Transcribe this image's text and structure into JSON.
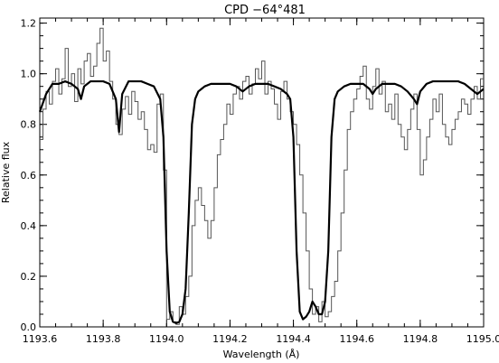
{
  "chart_data": {
    "type": "line",
    "title": "CPD  −64°481",
    "xlabel": "Wavelength (Å)",
    "ylabel": "Relative flux",
    "xlim": [
      1193.6,
      1195.0
    ],
    "ylim": [
      0.0,
      1.22
    ],
    "x_ticks": [
      1193.6,
      1193.8,
      1194.0,
      1194.2,
      1194.4,
      1194.6,
      1194.8,
      1195.0
    ],
    "x_tick_labels": [
      "1193.6",
      "1193.8",
      "1194.0",
      "1194.2",
      "1194.4",
      "1194.6",
      "1194.8",
      "1195.0"
    ],
    "y_ticks": [
      0.0,
      0.2,
      0.4,
      0.6,
      0.8,
      1.0,
      1.2
    ],
    "y_tick_labels": [
      "0.0",
      "0.2",
      "0.4",
      "0.6",
      "0.8",
      "1.0",
      "1.2"
    ],
    "grid": false,
    "series": [
      {
        "style": "histogram",
        "color": "#555555",
        "x": [
          1193.6,
          1193.61,
          1193.62,
          1193.63,
          1193.64,
          1193.65,
          1193.66,
          1193.67,
          1193.68,
          1193.69,
          1193.7,
          1193.71,
          1193.72,
          1193.73,
          1193.74,
          1193.75,
          1193.76,
          1193.77,
          1193.78,
          1193.79,
          1193.8,
          1193.81,
          1193.82,
          1193.83,
          1193.84,
          1193.85,
          1193.86,
          1193.87,
          1193.88,
          1193.89,
          1193.9,
          1193.91,
          1193.92,
          1193.93,
          1193.94,
          1193.95,
          1193.96,
          1193.97,
          1193.98,
          1193.99,
          1194.0,
          1194.01,
          1194.02,
          1194.03,
          1194.04,
          1194.05,
          1194.06,
          1194.07,
          1194.08,
          1194.09,
          1194.1,
          1194.11,
          1194.12,
          1194.13,
          1194.14,
          1194.15,
          1194.16,
          1194.17,
          1194.18,
          1194.19,
          1194.2,
          1194.21,
          1194.22,
          1194.23,
          1194.24,
          1194.25,
          1194.26,
          1194.27,
          1194.28,
          1194.29,
          1194.3,
          1194.31,
          1194.32,
          1194.33,
          1194.34,
          1194.35,
          1194.36,
          1194.37,
          1194.38,
          1194.39,
          1194.4,
          1194.41,
          1194.42,
          1194.43,
          1194.44,
          1194.45,
          1194.46,
          1194.47,
          1194.48,
          1194.49,
          1194.5,
          1194.51,
          1194.52,
          1194.53,
          1194.54,
          1194.55,
          1194.56,
          1194.57,
          1194.58,
          1194.59,
          1194.6,
          1194.61,
          1194.62,
          1194.63,
          1194.64,
          1194.65,
          1194.66,
          1194.67,
          1194.68,
          1194.69,
          1194.7,
          1194.71,
          1194.72,
          1194.73,
          1194.74,
          1194.75,
          1194.76,
          1194.77,
          1194.78,
          1194.79,
          1194.8,
          1194.81,
          1194.82,
          1194.83,
          1194.84,
          1194.85,
          1194.86,
          1194.87,
          1194.88,
          1194.89,
          1194.9,
          1194.91,
          1194.92,
          1194.93,
          1194.94,
          1194.95,
          1194.96,
          1194.97,
          1194.98,
          1194.99
        ],
        "y": [
          0.74,
          0.86,
          0.93,
          0.88,
          0.97,
          1.02,
          0.92,
          0.98,
          1.1,
          0.95,
          1.0,
          0.89,
          1.02,
          0.96,
          1.05,
          1.08,
          0.99,
          1.03,
          1.12,
          1.18,
          1.05,
          1.09,
          0.97,
          0.9,
          0.8,
          0.76,
          0.86,
          0.91,
          0.84,
          0.93,
          0.89,
          0.82,
          0.85,
          0.78,
          0.7,
          0.72,
          0.69,
          0.88,
          0.92,
          0.62,
          0.03,
          0.06,
          0.02,
          0.01,
          0.08,
          0.05,
          0.12,
          0.2,
          0.4,
          0.5,
          0.55,
          0.48,
          0.42,
          0.35,
          0.42,
          0.55,
          0.68,
          0.74,
          0.8,
          0.88,
          0.84,
          0.92,
          0.95,
          0.9,
          0.97,
          0.99,
          0.92,
          0.96,
          1.02,
          0.98,
          1.05,
          0.92,
          0.97,
          0.94,
          0.88,
          0.82,
          0.93,
          0.97,
          0.9,
          0.85,
          0.8,
          0.72,
          0.6,
          0.45,
          0.3,
          0.15,
          0.05,
          0.08,
          0.02,
          0.1,
          0.04,
          0.06,
          0.12,
          0.18,
          0.3,
          0.45,
          0.62,
          0.78,
          0.85,
          0.9,
          0.94,
          0.99,
          1.03,
          0.9,
          0.86,
          0.95,
          1.02,
          0.92,
          0.97,
          0.85,
          0.88,
          0.82,
          0.92,
          0.8,
          0.75,
          0.7,
          0.78,
          0.86,
          0.92,
          0.78,
          0.6,
          0.66,
          0.75,
          0.82,
          0.9,
          0.85,
          0.92,
          0.8,
          0.75,
          0.72,
          0.78,
          0.82,
          0.85,
          0.9,
          0.88,
          0.84,
          0.9,
          0.95,
          0.9,
          0.98
        ]
      },
      {
        "style": "line",
        "color": "#000000",
        "x": [
          1193.6,
          1193.62,
          1193.64,
          1193.66,
          1193.68,
          1193.7,
          1193.72,
          1193.73,
          1193.74,
          1193.76,
          1193.78,
          1193.8,
          1193.82,
          1193.84,
          1193.85,
          1193.86,
          1193.88,
          1193.9,
          1193.92,
          1193.94,
          1193.96,
          1193.98,
          1193.99,
          1194.0,
          1194.01,
          1194.02,
          1194.03,
          1194.04,
          1194.05,
          1194.06,
          1194.07,
          1194.08,
          1194.09,
          1194.1,
          1194.11,
          1194.12,
          1194.14,
          1194.16,
          1194.18,
          1194.2,
          1194.22,
          1194.24,
          1194.26,
          1194.28,
          1194.3,
          1194.32,
          1194.34,
          1194.36,
          1194.38,
          1194.39,
          1194.4,
          1194.41,
          1194.42,
          1194.43,
          1194.44,
          1194.45,
          1194.46,
          1194.47,
          1194.48,
          1194.49,
          1194.5,
          1194.51,
          1194.52,
          1194.53,
          1194.54,
          1194.56,
          1194.58,
          1194.6,
          1194.62,
          1194.64,
          1194.65,
          1194.66,
          1194.68,
          1194.7,
          1194.72,
          1194.74,
          1194.76,
          1194.78,
          1194.79,
          1194.8,
          1194.82,
          1194.84,
          1194.86,
          1194.88,
          1194.9,
          1194.92,
          1194.94,
          1194.96,
          1194.98,
          1195.0
        ],
        "y": [
          0.85,
          0.92,
          0.96,
          0.96,
          0.97,
          0.96,
          0.94,
          0.9,
          0.95,
          0.97,
          0.97,
          0.97,
          0.96,
          0.9,
          0.77,
          0.92,
          0.97,
          0.97,
          0.97,
          0.96,
          0.95,
          0.9,
          0.75,
          0.3,
          0.06,
          0.02,
          0.015,
          0.02,
          0.05,
          0.15,
          0.45,
          0.8,
          0.9,
          0.93,
          0.94,
          0.95,
          0.96,
          0.96,
          0.96,
          0.96,
          0.95,
          0.93,
          0.95,
          0.96,
          0.96,
          0.96,
          0.95,
          0.94,
          0.92,
          0.9,
          0.75,
          0.3,
          0.06,
          0.03,
          0.04,
          0.06,
          0.1,
          0.08,
          0.05,
          0.05,
          0.1,
          0.3,
          0.75,
          0.9,
          0.93,
          0.95,
          0.96,
          0.96,
          0.96,
          0.94,
          0.92,
          0.94,
          0.96,
          0.96,
          0.96,
          0.95,
          0.93,
          0.9,
          0.88,
          0.93,
          0.96,
          0.97,
          0.97,
          0.97,
          0.97,
          0.97,
          0.96,
          0.94,
          0.92,
          0.94
        ]
      }
    ]
  }
}
